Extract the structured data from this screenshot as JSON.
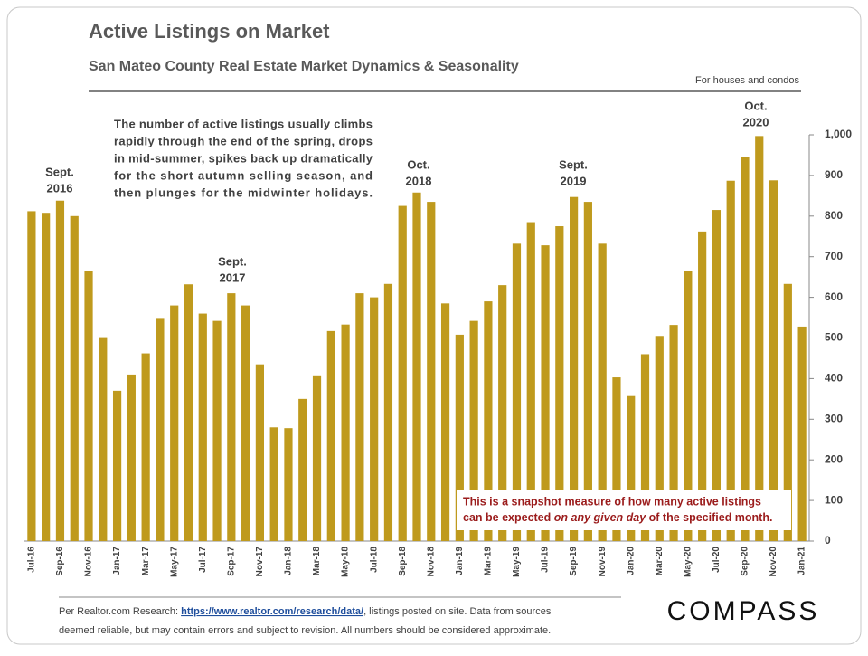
{
  "chart_data": {
    "type": "bar",
    "title": "Active Listings on Market",
    "subtitle": "San Mateo County Real Estate Market Dynamics & Seasonality",
    "note": "For houses and condos",
    "description": [
      "The number of active listings usually climbs",
      "rapidly through the end of the spring, drops",
      "in mid-summer, spikes back up dramatically",
      "for the short autumn selling season, and",
      "then plunges for the midwinter holidays."
    ],
    "callout": {
      "line1": "This is a snapshot measure of how many active listings",
      "line2": [
        "can be expected ",
        "on any given day",
        " of the specified month."
      ]
    },
    "annotations": [
      [
        "Sept.",
        "2016"
      ],
      [
        "Sept.",
        "2017"
      ],
      [
        "Oct.",
        "2018"
      ],
      [
        "Sept.",
        "2019"
      ],
      [
        "Oct.",
        "2020"
      ]
    ],
    "categories": [
      "Jul-16",
      null,
      "Sep-16",
      null,
      "Nov-16",
      null,
      "Jan-17",
      null,
      "Mar-17",
      null,
      "May-17",
      null,
      "Jul-17",
      null,
      "Sep-17",
      null,
      "Nov-17",
      null,
      "Jan-18",
      null,
      "Mar-18",
      null,
      "May-18",
      null,
      "Jul-18",
      null,
      "Sep-18",
      null,
      "Nov-18",
      null,
      "Jan-19",
      null,
      "Mar-19",
      null,
      "May-19",
      null,
      "Jul-19",
      null,
      "Sep-19",
      null,
      "Nov-19",
      null,
      "Jan-20",
      null,
      "Mar-20",
      null,
      "May-20",
      null,
      "Jul-20",
      null,
      "Sep-20",
      null,
      "Nov-20",
      null,
      "Jan-21"
    ],
    "values": [
      812,
      808,
      838,
      800,
      665,
      502,
      370,
      410,
      462,
      547,
      580,
      632,
      560,
      542,
      610,
      580,
      435,
      280,
      278,
      350,
      408,
      517,
      533,
      610,
      600,
      633,
      825,
      858,
      835,
      585,
      508,
      542,
      590,
      630,
      732,
      785,
      728,
      775,
      847,
      835,
      732,
      403,
      357,
      460,
      505,
      532,
      665,
      762,
      815,
      887,
      945,
      997,
      888,
      633,
      528
    ],
    "color": "#bf9a1d",
    "ylim": [
      0,
      1000
    ],
    "yticks": [
      0,
      100,
      200,
      300,
      400,
      500,
      600,
      700,
      800,
      900,
      {
        "value": 1000,
        "label": "1,000"
      }
    ],
    "y_axis_side": "right",
    "grid": false
  },
  "footer": {
    "line1": [
      "Per Realtor.com Research:  ",
      "https://www.realtor.com/research/data/",
      ", listings posted on site. Data from sources"
    ],
    "line2": "deemed reliable, but may contain errors and subject to revision.  All numbers should  be considered approximate.",
    "logo": "COMPASS"
  }
}
